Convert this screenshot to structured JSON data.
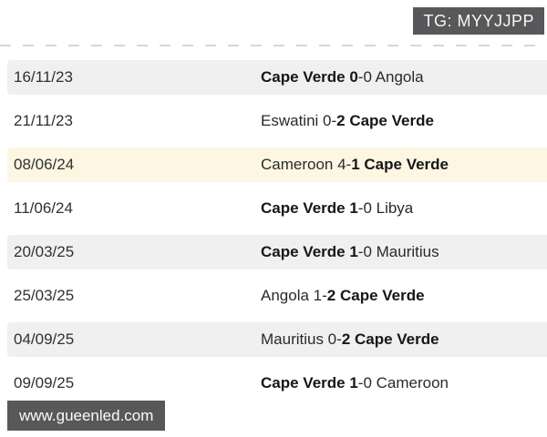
{
  "header": {
    "telegram_badge": "TG: MYYJJPP"
  },
  "footer": {
    "watermark": "www.gueenled.com"
  },
  "colors": {
    "badge_bg": "#58585a",
    "row_gray": "#f0f0f0",
    "row_yellow": "#fcf6e3",
    "bold_text": "#161616"
  },
  "matches": [
    {
      "date": "16/11/23",
      "variant": "gray",
      "segments": [
        {
          "text": "Cape Verde 0",
          "bold": true
        },
        {
          "text": "-0 Angola",
          "bold": false
        }
      ]
    },
    {
      "date": "21/11/23",
      "variant": "white",
      "segments": [
        {
          "text": "Eswatini 0-",
          "bold": false
        },
        {
          "text": "2 Cape Verde",
          "bold": true
        }
      ]
    },
    {
      "date": "08/06/24",
      "variant": "yellow",
      "segments": [
        {
          "text": "Cameroon 4-",
          "bold": false
        },
        {
          "text": "1 Cape Verde",
          "bold": true
        }
      ]
    },
    {
      "date": "11/06/24",
      "variant": "white",
      "segments": [
        {
          "text": "Cape Verde 1",
          "bold": true
        },
        {
          "text": "-0 Libya",
          "bold": false
        }
      ]
    },
    {
      "date": "20/03/25",
      "variant": "gray",
      "segments": [
        {
          "text": "Cape Verde 1",
          "bold": true
        },
        {
          "text": "-0 Mauritius",
          "bold": false
        }
      ]
    },
    {
      "date": "25/03/25",
      "variant": "white",
      "segments": [
        {
          "text": "Angola 1-",
          "bold": false
        },
        {
          "text": "2 Cape Verde",
          "bold": true
        }
      ]
    },
    {
      "date": "04/09/25",
      "variant": "gray",
      "segments": [
        {
          "text": "Mauritius 0-",
          "bold": false
        },
        {
          "text": "2 Cape Verde",
          "bold": true
        }
      ]
    },
    {
      "date": "09/09/25",
      "variant": "white",
      "segments": [
        {
          "text": "Cape Verde 1",
          "bold": true
        },
        {
          "text": "-0 Cameroon",
          "bold": false
        }
      ]
    }
  ]
}
